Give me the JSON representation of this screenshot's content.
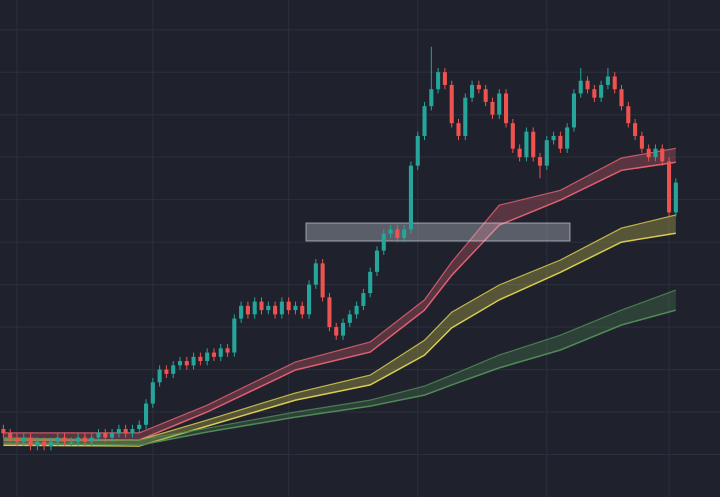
{
  "chart_data": {
    "type": "candlestick",
    "xlim": [
      -0.5,
      105.5
    ],
    "xticks": [
      2,
      22,
      42,
      61,
      80,
      98
    ],
    "ylim": [
      0,
      117
    ],
    "yticks": [
      10,
      20,
      30,
      40,
      50,
      60,
      70,
      80,
      90,
      100,
      110
    ],
    "grid": true,
    "up_color": "#26a69a",
    "down_color": "#ef5350",
    "open": [
      16,
      15,
      14,
      13,
      14,
      12,
      13,
      12,
      13,
      14,
      13,
      13,
      14,
      13,
      14,
      15,
      14,
      15,
      16,
      15,
      16,
      17,
      22,
      27,
      30,
      29,
      31,
      32,
      31,
      33,
      32,
      34,
      33,
      35,
      34,
      42,
      45,
      43,
      46,
      44,
      45,
      43,
      46,
      44,
      45,
      43,
      50,
      55,
      47,
      40,
      38,
      41,
      43,
      45,
      48,
      53,
      58,
      62,
      63,
      61,
      63,
      78,
      85,
      92,
      96,
      100,
      97,
      88,
      85,
      94,
      97,
      96,
      93,
      90,
      95,
      88,
      82,
      80,
      86,
      80,
      78,
      84,
      85,
      82,
      87,
      95,
      98,
      96,
      94,
      97,
      99,
      96,
      92,
      88,
      85,
      82,
      80,
      82,
      79,
      67
    ],
    "high": [
      17,
      16,
      15,
      15,
      15,
      14,
      14,
      14,
      15,
      15,
      14,
      15,
      15,
      15,
      16,
      16,
      16,
      17,
      17,
      17,
      18,
      23,
      28,
      31,
      31,
      32,
      33,
      33,
      34,
      34,
      35,
      35,
      36,
      36,
      43,
      46,
      46,
      47,
      47,
      46,
      46,
      47,
      47,
      46,
      46,
      51,
      56,
      56,
      48,
      41,
      42,
      44,
      46,
      49,
      54,
      59,
      63,
      64,
      64,
      64,
      79,
      86,
      93,
      106,
      101,
      101,
      98,
      89,
      95,
      98,
      98,
      97,
      94,
      96,
      96,
      89,
      83,
      87,
      87,
      81,
      85,
      86,
      86,
      88,
      96,
      101,
      99,
      97,
      98,
      101,
      100,
      97,
      93,
      89,
      86,
      83,
      83,
      83,
      80,
      75
    ],
    "low": [
      14,
      13,
      12,
      12,
      11,
      11,
      11,
      11,
      12,
      12,
      12,
      12,
      12,
      12,
      13,
      13,
      13,
      14,
      14,
      14,
      15,
      16,
      21,
      26,
      28,
      28,
      30,
      30,
      30,
      31,
      31,
      32,
      32,
      33,
      33,
      41,
      42,
      42,
      43,
      43,
      42,
      42,
      43,
      43,
      42,
      42,
      49,
      46,
      39,
      37,
      37,
      40,
      42,
      44,
      47,
      52,
      57,
      61,
      60,
      60,
      62,
      77,
      84,
      91,
      95,
      96,
      87,
      84,
      84,
      93,
      95,
      92,
      89,
      89,
      87,
      81,
      79,
      79,
      79,
      75,
      77,
      83,
      81,
      81,
      86,
      94,
      95,
      93,
      93,
      96,
      95,
      91,
      87,
      84,
      81,
      79,
      79,
      78,
      66,
      66
    ],
    "close": [
      15,
      14,
      13,
      14,
      12,
      13,
      12,
      13,
      14,
      13,
      13,
      14,
      13,
      14,
      15,
      14,
      15,
      16,
      15,
      16,
      17,
      22,
      27,
      30,
      29,
      31,
      32,
      31,
      33,
      32,
      34,
      33,
      35,
      34,
      42,
      45,
      43,
      46,
      44,
      45,
      43,
      46,
      44,
      45,
      43,
      50,
      55,
      47,
      40,
      38,
      41,
      43,
      45,
      48,
      53,
      58,
      62,
      63,
      61,
      63,
      78,
      85,
      92,
      96,
      100,
      97,
      88,
      85,
      94,
      97,
      96,
      93,
      90,
      95,
      88,
      82,
      80,
      86,
      80,
      78,
      84,
      85,
      82,
      87,
      95,
      98,
      96,
      94,
      97,
      99,
      96,
      92,
      88,
      85,
      82,
      80,
      82,
      79,
      67,
      74
    ],
    "bands": [
      {
        "color": "#e06070",
        "x": [
          0,
          20,
          30,
          43,
          54,
          62,
          66,
          73,
          82,
          91,
          99
        ],
        "upper": [
          15.1,
          15.1,
          21.6,
          31.8,
          36.5,
          46.4,
          55.3,
          68.7,
          72.2,
          79.8,
          82.1
        ],
        "lower": [
          13.4,
          13.4,
          20,
          29.9,
          34.1,
          44,
          52.2,
          64,
          69.9,
          76.9,
          78.8
        ]
      },
      {
        "color": "#d8cc50",
        "x": [
          0,
          20,
          30,
          43,
          54,
          62,
          66,
          73,
          82,
          91,
          99
        ],
        "upper": [
          13.9,
          13.4,
          18.1,
          24.5,
          28.7,
          36.9,
          43.5,
          49.9,
          55.8,
          63.3,
          66.4
        ],
        "lower": [
          12.2,
          12,
          16.7,
          22.8,
          26.4,
          33.4,
          39.8,
          46.4,
          52.9,
          60,
          62.1
        ]
      },
      {
        "color": "#4f8a55",
        "x": [
          0,
          20,
          30,
          43,
          54,
          62,
          66,
          73,
          82,
          91,
          99
        ],
        "upper": [
          13.9,
          13.4,
          16.2,
          20,
          22.8,
          26.1,
          28.7,
          33.4,
          38.1,
          44,
          48.7
        ],
        "lower": [
          12.7,
          12.2,
          15.3,
          18.8,
          21.4,
          24,
          26.4,
          30.4,
          34.6,
          40.5,
          44
        ]
      }
    ]
  }
}
